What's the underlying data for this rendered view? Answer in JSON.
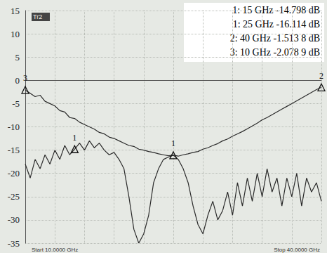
{
  "chart_data": {
    "type": "line",
    "trace_label": "Tr2",
    "start_label": "Start 10.0000 GHz",
    "stop_label": "Stop 40.0000 GHz",
    "annotations": [
      "1: 15 GHz -14.798 dB",
      "1: 25 GHz -16.114 dB",
      "2: 40 GHz -1.513 8 dB",
      "3: 10 GHz -2.078 9 dB"
    ],
    "x": [
      10,
      10.5,
      11,
      11.5,
      12,
      12.5,
      13,
      13.5,
      14,
      14.5,
      15,
      15.5,
      16,
      16.5,
      17,
      17.5,
      18,
      18.5,
      19,
      19.5,
      20,
      20.5,
      21,
      21.5,
      22,
      22.5,
      23,
      23.5,
      24,
      24.5,
      25,
      25.5,
      26,
      26.5,
      27,
      27.5,
      28,
      28.5,
      29,
      29.5,
      30,
      30.5,
      31,
      31.5,
      32,
      32.5,
      33,
      33.5,
      34,
      34.5,
      35,
      35.5,
      36,
      36.5,
      37,
      37.5,
      38,
      38.5,
      39,
      39.5,
      40
    ],
    "series": [
      {
        "color": "#2b2b2b",
        "values": [
          -2.1,
          -2.8,
          -3.5,
          -3.2,
          -4.5,
          -5,
          -5.5,
          -6.5,
          -6.8,
          -8,
          -8.2,
          -9,
          -9.5,
          -10,
          -10.5,
          -11.2,
          -11.5,
          -12.2,
          -12.5,
          -13,
          -13.5,
          -14,
          -14.2,
          -14.8,
          -15,
          -15.3,
          -15.5,
          -15.8,
          -16,
          -16.2,
          -16.1,
          -16.3,
          -16,
          -15.8,
          -15.5,
          -15.3,
          -14.8,
          -14.5,
          -14,
          -13.6,
          -13,
          -12.6,
          -12,
          -11.5,
          -11,
          -10.4,
          -9.8,
          -9.2,
          -8.5,
          -8,
          -7.4,
          -6.8,
          -6.2,
          -5.6,
          -5,
          -4.4,
          -3.8,
          -3.2,
          -2.6,
          -2,
          -1.5
        ],
        "markers": [
          {
            "label": "1",
            "x": 25,
            "y": -16.114
          },
          {
            "label": "2",
            "x": 40,
            "y": -1.5138
          },
          {
            "label": "3",
            "x": 10,
            "y": -2.0789
          }
        ]
      },
      {
        "color": "#2b2b2b",
        "values": [
          -18,
          -21,
          -17,
          -19,
          -16,
          -18,
          -15,
          -17,
          -14,
          -16,
          -14.8,
          -13.5,
          -15,
          -13,
          -14.5,
          -13.5,
          -15,
          -16,
          -15.5,
          -17,
          -19,
          -25,
          -32,
          -35,
          -33,
          -29,
          -22,
          -19,
          -17,
          -16.5,
          -16.1,
          -17,
          -19,
          -22,
          -27,
          -31,
          -33,
          -29,
          -26,
          -30,
          -28,
          -24,
          -29,
          -22,
          -27,
          -21,
          -26,
          -20,
          -25,
          -19,
          -24,
          -21,
          -27,
          -21,
          -25,
          -20,
          -27,
          -21,
          -24,
          -22,
          -26
        ],
        "markers": [
          {
            "label": "1",
            "x": 15,
            "y": -14.798
          }
        ]
      }
    ],
    "xlim": [
      10,
      40
    ],
    "xticks": [
      10,
      13,
      16,
      19,
      22,
      25,
      28,
      31,
      34,
      37,
      40
    ],
    "ylim": [
      -35,
      15
    ],
    "yticks": [
      -35,
      -30,
      -25,
      -20,
      -15,
      -10,
      -5,
      0,
      5,
      10,
      15
    ],
    "grid": true,
    "tick_labels": "y",
    "line_style": "solid",
    "marker": "triangle"
  }
}
